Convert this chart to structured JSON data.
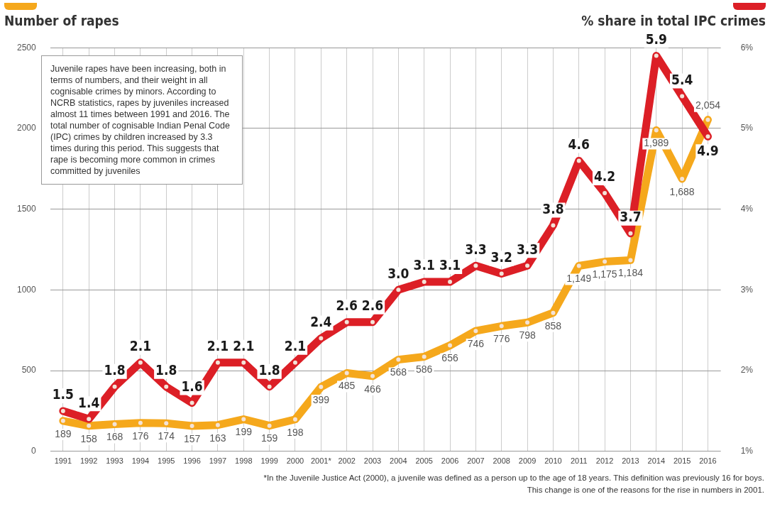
{
  "chart_data": {
    "type": "line",
    "ylabel": "Number of rapes",
    "y2label": "% share in total IPC crimes",
    "categories": [
      "1991",
      "1992",
      "1993",
      "1994",
      "1995",
      "1996",
      "1997",
      "1998",
      "1999",
      "2000",
      "2001*",
      "2002",
      "2003",
      "2004",
      "2005",
      "2006",
      "2007",
      "2008",
      "2009",
      "2010",
      "2011",
      "2012",
      "2013",
      "2014",
      "2015",
      "2016"
    ],
    "series": [
      {
        "color": "#f5a81c",
        "values": [
          189,
          158,
          168,
          176,
          174,
          157,
          163,
          199,
          159,
          198,
          399,
          485,
          466,
          568,
          586,
          656,
          746,
          776,
          798,
          858,
          1149,
          1175,
          1184,
          1989,
          1688,
          2054
        ],
        "value_labels": [
          "189",
          "158",
          "168",
          "176",
          "174",
          "157",
          "163",
          "199",
          "159",
          "198",
          "399",
          "485",
          "466",
          "568",
          "586",
          "656",
          "746",
          "776",
          "798",
          "858",
          "1,149",
          "1,175",
          "1,184",
          "1,989",
          "1,688",
          "2,054"
        ]
      },
      {
        "color": "#dc1f26",
        "axis": "y2",
        "values": [
          1.5,
          1.4,
          1.8,
          2.1,
          1.8,
          1.6,
          2.1,
          2.1,
          1.8,
          2.1,
          2.4,
          2.6,
          2.6,
          3.0,
          3.1,
          3.1,
          3.3,
          3.2,
          3.3,
          3.8,
          4.6,
          4.2,
          3.7,
          5.9,
          5.4,
          4.9
        ],
        "value_labels": [
          "1.5",
          "1.4",
          "1.8",
          "2.1",
          "1.8",
          "1.6",
          "2.1",
          "2.1",
          "1.8",
          "2.1",
          "2.4",
          "2.6",
          "2.6",
          "3.0",
          "3.1",
          "3.1",
          "3.3",
          "3.2",
          "3.3",
          "3.8",
          "4.6",
          "4.2",
          "3.7",
          "5.9",
          "5.4",
          "4.9"
        ]
      }
    ],
    "ylim": [
      0,
      2500
    ],
    "yticks": [
      0,
      500,
      1000,
      1500,
      2000,
      2500
    ],
    "y2lim": [
      1,
      6
    ],
    "y2ticks": [
      {
        "value": 1,
        "label": "1%"
      },
      {
        "value": 2,
        "label": "2%"
      },
      {
        "value": 3,
        "label": "3%"
      },
      {
        "value": 4,
        "label": "4%"
      },
      {
        "value": 5,
        "label": "5%"
      },
      {
        "value": 6,
        "label": "6%"
      }
    ],
    "grid": true,
    "marker": "circle",
    "line_style": "solid",
    "annotations": [
      "Juvenile rapes have been increasing, both in terms of numbers, and their weight in all cognisable crimes by minors. According to NCRB statistics, rapes by juveniles increased almost 11 times between 1991 and 2016. The total number of cognisable Indian Penal Code (IPC) crimes by children increased by 3.3 times during this period. This suggests that rape is becoming more common in crimes committed by juveniles",
      "*In the Juvenile Justice Act (2000), a juvenile was defined as a person up to the age of 18 years. This definition was previously 16 for boys. This change is one of the reasons for the rise in numbers in 2001."
    ]
  }
}
